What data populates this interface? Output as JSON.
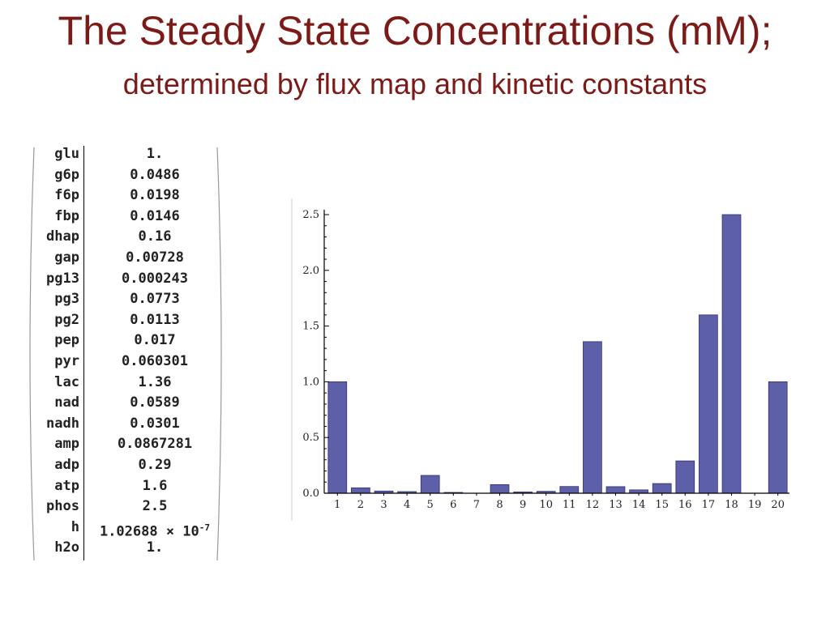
{
  "title": "The Steady State Concentrations (mM);",
  "subtitle": "determined by flux map and kinetic constants",
  "table": {
    "rows": [
      {
        "name": "glu",
        "value": "1."
      },
      {
        "name": "g6p",
        "value": "0.0486"
      },
      {
        "name": "f6p",
        "value": "0.0198"
      },
      {
        "name": "fbp",
        "value": "0.0146"
      },
      {
        "name": "dhap",
        "value": "0.16"
      },
      {
        "name": "gap",
        "value": "0.00728"
      },
      {
        "name": "pg13",
        "value": "0.000243"
      },
      {
        "name": "pg3",
        "value": "0.0773"
      },
      {
        "name": "pg2",
        "value": "0.0113"
      },
      {
        "name": "pep",
        "value": "0.017"
      },
      {
        "name": "pyr",
        "value": "0.060301"
      },
      {
        "name": "lac",
        "value": "1.36"
      },
      {
        "name": "nad",
        "value": "0.0589"
      },
      {
        "name": "nadh",
        "value": "0.0301"
      },
      {
        "name": "amp",
        "value": "0.0867281"
      },
      {
        "name": "adp",
        "value": "0.29"
      },
      {
        "name": "atp",
        "value": "1.6"
      },
      {
        "name": "phos",
        "value": "2.5"
      },
      {
        "name": "h",
        "value": "1.02688 × 10",
        "exponent": "-7"
      },
      {
        "name": "h2o",
        "value": "1."
      }
    ]
  },
  "chart_data": {
    "type": "bar",
    "categories": [
      "1",
      "2",
      "3",
      "4",
      "5",
      "6",
      "7",
      "8",
      "9",
      "10",
      "11",
      "12",
      "13",
      "14",
      "15",
      "16",
      "17",
      "18",
      "19",
      "20"
    ],
    "values": [
      1.0,
      0.0486,
      0.0198,
      0.0146,
      0.16,
      0.00728,
      0.000243,
      0.0773,
      0.0113,
      0.017,
      0.060301,
      1.36,
      0.0589,
      0.0301,
      0.0867281,
      0.29,
      1.6,
      2.5,
      1.02688e-07,
      1.0
    ],
    "ylim": [
      0,
      2.5
    ],
    "yticks": [
      "0.0",
      "0.5",
      "1.0",
      "1.5",
      "2.0",
      "2.5"
    ],
    "bar_color": "#5d5fa8",
    "grid": false
  }
}
